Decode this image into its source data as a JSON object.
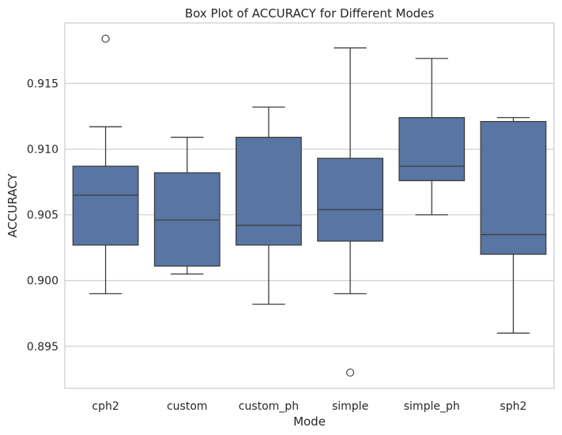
{
  "chart_data": {
    "type": "box",
    "title": "Box Plot of ACCURACY for Different Modes",
    "xlabel": "Mode",
    "ylabel": "ACCURACY",
    "ylim": [
      0.8918,
      0.9196
    ],
    "yticks": [
      0.895,
      0.9,
      0.905,
      0.91,
      0.915
    ],
    "ytick_labels": [
      "0.895",
      "0.900",
      "0.905",
      "0.910",
      "0.915"
    ],
    "grid": true,
    "color": "#5875a4",
    "categories": [
      "cph2",
      "custom",
      "custom_ph",
      "simple",
      "simple_ph",
      "sph2"
    ],
    "boxes": [
      {
        "whisker_low": 0.899,
        "q1": 0.9027,
        "median": 0.9065,
        "q3": 0.9087,
        "whisker_high": 0.9117,
        "outliers": [
          0.9184
        ]
      },
      {
        "whisker_low": 0.9005,
        "q1": 0.9011,
        "median": 0.9046,
        "q3": 0.9082,
        "whisker_high": 0.9109,
        "outliers": []
      },
      {
        "whisker_low": 0.8982,
        "q1": 0.9027,
        "median": 0.9042,
        "q3": 0.9109,
        "whisker_high": 0.9132,
        "outliers": []
      },
      {
        "whisker_low": 0.899,
        "q1": 0.903,
        "median": 0.9054,
        "q3": 0.9093,
        "whisker_high": 0.9177,
        "outliers": [
          0.893
        ]
      },
      {
        "whisker_low": 0.905,
        "q1": 0.9076,
        "median": 0.9087,
        "q3": 0.9124,
        "whisker_high": 0.9169,
        "outliers": []
      },
      {
        "whisker_low": 0.896,
        "q1": 0.902,
        "median": 0.9035,
        "q3": 0.9121,
        "whisker_high": 0.9124,
        "outliers": []
      }
    ]
  }
}
